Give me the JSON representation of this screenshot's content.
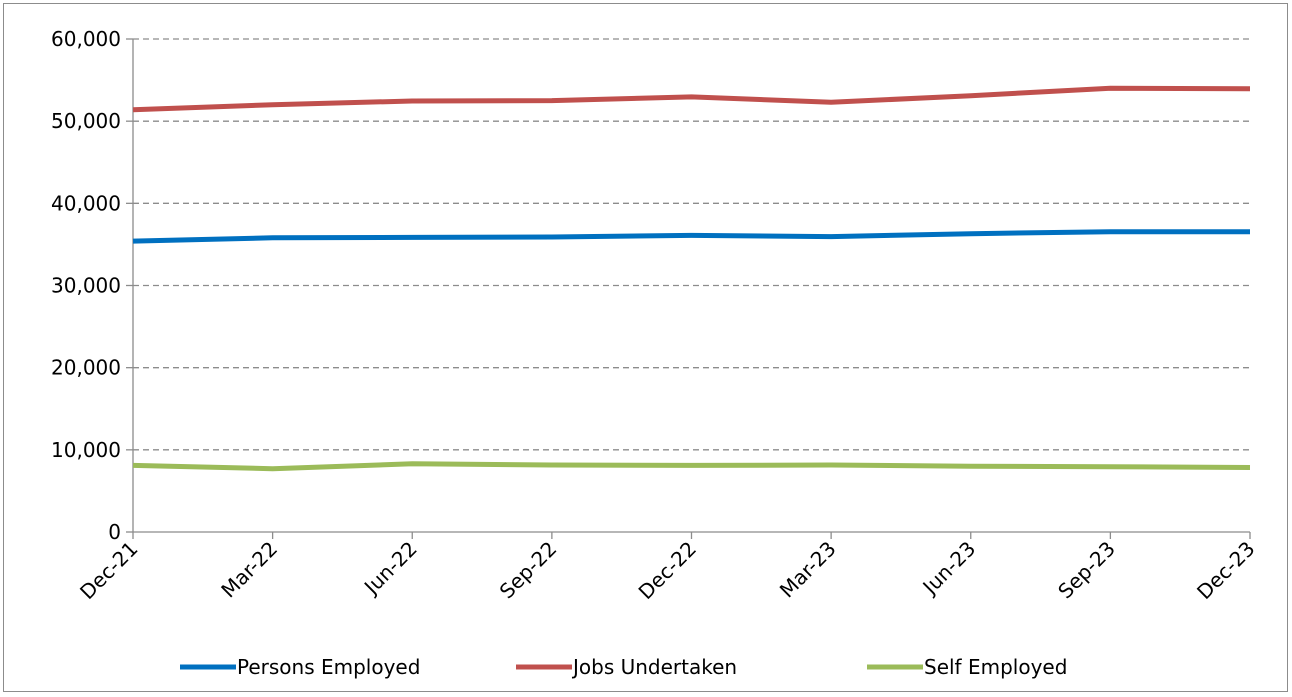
{
  "chart_data": {
    "type": "line",
    "categories": [
      "Dec-21",
      "Mar-22",
      "Jun-22",
      "Sep-22",
      "Dec-22",
      "Mar-23",
      "Jun-23",
      "Sep-23",
      "Dec-23"
    ],
    "series": [
      {
        "name": "Persons Employed",
        "color": "#0070c0",
        "values": [
          35400,
          35800,
          35850,
          35900,
          36100,
          35950,
          36300,
          36550,
          36550
        ]
      },
      {
        "name": "Jobs Undertaken",
        "color": "#c0504d",
        "values": [
          51400,
          52000,
          52450,
          52500,
          52950,
          52300,
          53100,
          54000,
          53950
        ]
      },
      {
        "name": "Self Employed",
        "color": "#9bbb59",
        "values": [
          8100,
          7700,
          8300,
          8150,
          8100,
          8150,
          8000,
          7950,
          7850
        ]
      }
    ],
    "yticks": [
      "0",
      "10,000",
      "20,000",
      "30,000",
      "40,000",
      "50,000",
      "60,000"
    ],
    "ylim": [
      0,
      60000
    ],
    "grid": true,
    "grid_style": "dashed",
    "legend_position": "bottom"
  }
}
